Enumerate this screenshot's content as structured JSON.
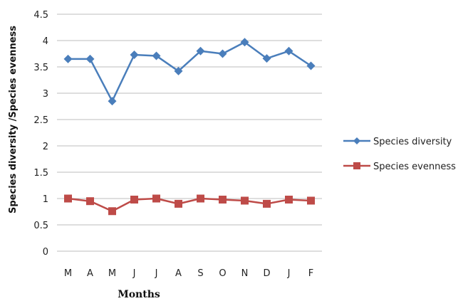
{
  "chart_data": {
    "type": "line",
    "categories": [
      "M",
      "A",
      "M",
      "J",
      "J",
      "A",
      "S",
      "O",
      "N",
      "D",
      "J",
      "F"
    ],
    "series": [
      {
        "name": "Species diversity",
        "values": [
          3.65,
          3.65,
          2.85,
          3.73,
          3.71,
          3.42,
          3.8,
          3.75,
          3.97,
          3.66,
          3.8,
          3.52
        ],
        "color": "#4A7EBB",
        "marker": "diamond"
      },
      {
        "name": "Species evenness",
        "values": [
          1.0,
          0.95,
          0.76,
          0.98,
          1.0,
          0.9,
          1.0,
          0.98,
          0.96,
          0.9,
          0.98,
          0.96
        ],
        "color": "#BE4B48",
        "marker": "square"
      }
    ],
    "xlabel": "Months",
    "ylabel": "Species diversity /Species evenness",
    "ylim": [
      0,
      4.5
    ],
    "yticks": [
      "0",
      "0.5",
      "1",
      "1.5",
      "2",
      "2.5",
      "3",
      "3.5",
      "4",
      "4.5"
    ],
    "grid": true,
    "legend_position": "right"
  }
}
